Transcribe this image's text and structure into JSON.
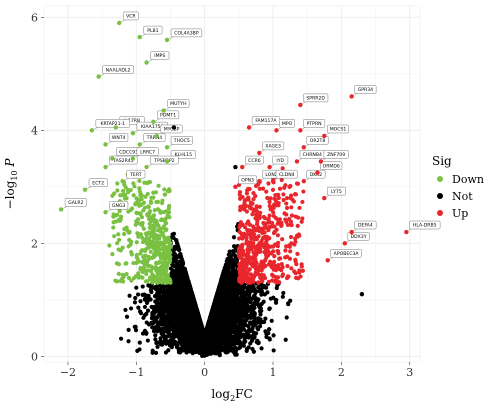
{
  "chart_data": {
    "type": "scatter",
    "title": "",
    "xlabel": {
      "base": "log",
      "sub": "2",
      "rest": "FC"
    },
    "ylabel": {
      "prefix": "−log",
      "sub": "10",
      "rest": " P"
    },
    "xlim": [
      -2.35,
      3.15
    ],
    "ylim": [
      -0.1,
      6.2
    ],
    "xticks": [
      -2,
      -1,
      0,
      1,
      2,
      3
    ],
    "xtick_labels": [
      "−2",
      "−1",
      "0",
      "1",
      "2",
      "3"
    ],
    "yticks": [
      0,
      2,
      4,
      6
    ],
    "ytick_labels": [
      "0",
      "2",
      "4",
      "6"
    ],
    "grid": true,
    "legend": {
      "title": "Sig",
      "placement": "right",
      "entries": [
        {
          "label": "Down",
          "color": "#7ac143"
        },
        {
          "label": "Not",
          "color": "#000000"
        },
        {
          "label": "Up",
          "color": "#e8262c"
        }
      ]
    },
    "cloud": {
      "fc_threshold": 0.5,
      "p_threshold": 1.3,
      "colors": {
        "down": "#7ac143",
        "not": "#000000",
        "up": "#e8262c"
      }
    },
    "labeled_points": [
      {
        "gene": "VCR",
        "x": -1.25,
        "y": 5.9,
        "sig": "Down"
      },
      {
        "gene": "PLB1",
        "x": -0.95,
        "y": 5.65,
        "sig": "Down"
      },
      {
        "gene": "COL4A3BP",
        "x": -0.55,
        "y": 5.6,
        "sig": "Down"
      },
      {
        "gene": "IMPS",
        "x": -0.85,
        "y": 5.2,
        "sig": "Down"
      },
      {
        "gene": "NAALADL2",
        "x": -1.55,
        "y": 4.95,
        "sig": "Down"
      },
      {
        "gene": "MUTYH",
        "x": -0.6,
        "y": 4.35,
        "sig": "Down"
      },
      {
        "gene": "PDMT1",
        "x": -0.75,
        "y": 4.15,
        "sig": "Down"
      },
      {
        "gene": "IL17RB",
        "x": -1.3,
        "y": 4.05,
        "sig": "Down"
      },
      {
        "gene": "KRTAP21-1",
        "x": -1.65,
        "y": 4.0,
        "sig": "Down"
      },
      {
        "gene": "KIAA1755",
        "x": -1.05,
        "y": 3.95,
        "sig": "Down"
      },
      {
        "gene": "MYCBP",
        "x": -0.7,
        "y": 3.9,
        "sig": "Down"
      },
      {
        "gene": "WNT4",
        "x": -1.45,
        "y": 3.75,
        "sig": "Down"
      },
      {
        "gene": "TRRN4",
        "x": -0.95,
        "y": 3.75,
        "sig": "Down"
      },
      {
        "gene": "THOC5",
        "x": -0.55,
        "y": 3.7,
        "sig": "Down"
      },
      {
        "gene": "CDCC93",
        "x": -1.35,
        "y": 3.5,
        "sig": "Down"
      },
      {
        "gene": "LRRC7",
        "x": -1.05,
        "y": 3.5,
        "sig": "Down"
      },
      {
        "gene": "KLHL15",
        "x": -0.55,
        "y": 3.45,
        "sig": "Down"
      },
      {
        "gene": "TAS2R45",
        "x": -1.45,
        "y": 3.35,
        "sig": "Down"
      },
      {
        "gene": "TPSB2P2",
        "x": -0.85,
        "y": 3.35,
        "sig": "Down"
      },
      {
        "gene": "TERT",
        "x": -1.2,
        "y": 3.1,
        "sig": "Down"
      },
      {
        "gene": "ECT2",
        "x": -1.75,
        "y": 2.95,
        "sig": "Down"
      },
      {
        "gene": "GALR2",
        "x": -2.1,
        "y": 2.6,
        "sig": "Down"
      },
      {
        "gene": "GNG3",
        "x": -1.45,
        "y": 2.55,
        "sig": "Down"
      },
      {
        "gene": "GPR34",
        "x": 2.15,
        "y": 4.6,
        "sig": "Up"
      },
      {
        "gene": "SPRR2D",
        "x": 1.4,
        "y": 4.45,
        "sig": "Up"
      },
      {
        "gene": "FAM117A",
        "x": 0.65,
        "y": 4.05,
        "sig": "Up"
      },
      {
        "gene": "MPO",
        "x": 1.05,
        "y": 4.0,
        "sig": "Up"
      },
      {
        "gene": "PTPRN",
        "x": 1.4,
        "y": 4.0,
        "sig": "Up"
      },
      {
        "gene": "MOCS1",
        "x": 1.75,
        "y": 3.9,
        "sig": "Up"
      },
      {
        "gene": "OR2T8",
        "x": 1.45,
        "y": 3.7,
        "sig": "Up"
      },
      {
        "gene": "XAGE3",
        "x": 0.8,
        "y": 3.6,
        "sig": "Up"
      },
      {
        "gene": "CHRNB4",
        "x": 1.35,
        "y": 3.45,
        "sig": "Up"
      },
      {
        "gene": "ZNF709",
        "x": 1.7,
        "y": 3.45,
        "sig": "Up"
      },
      {
        "gene": "CCR6",
        "x": 0.55,
        "y": 3.35,
        "sig": "Up"
      },
      {
        "gene": "IYD",
        "x": 0.95,
        "y": 3.35,
        "sig": "Up"
      },
      {
        "gene": "ORMD6",
        "x": 1.65,
        "y": 3.25,
        "sig": "Up"
      },
      {
        "gene": "LON2",
        "x": 0.8,
        "y": 3.1,
        "sig": "Up"
      },
      {
        "gene": "CLDN4",
        "x": 1.0,
        "y": 3.1,
        "sig": "Up"
      },
      {
        "gene": "DKK2",
        "x": 1.45,
        "y": 3.1,
        "sig": "Up"
      },
      {
        "gene": "OPN3",
        "x": 0.45,
        "y": 3.0,
        "sig": "Up"
      },
      {
        "gene": "LY75",
        "x": 1.75,
        "y": 2.8,
        "sig": "Up"
      },
      {
        "gene": "HLA-DRB5",
        "x": 2.95,
        "y": 2.2,
        "sig": "Up"
      },
      {
        "gene": "DEFA4",
        "x": 2.15,
        "y": 2.2,
        "sig": "Up"
      },
      {
        "gene": "DDX3Y",
        "x": 2.05,
        "y": 2.0,
        "sig": "Up"
      },
      {
        "gene": "APOBEC3A",
        "x": 1.8,
        "y": 1.7,
        "sig": "Up"
      },
      {
        "gene": "",
        "x": -0.45,
        "y": 4.05,
        "sig": "Not"
      },
      {
        "gene": "",
        "x": 2.3,
        "y": 1.1,
        "sig": "Not"
      },
      {
        "gene": "",
        "x": 0.45,
        "y": 3.35,
        "sig": "Not"
      }
    ]
  }
}
